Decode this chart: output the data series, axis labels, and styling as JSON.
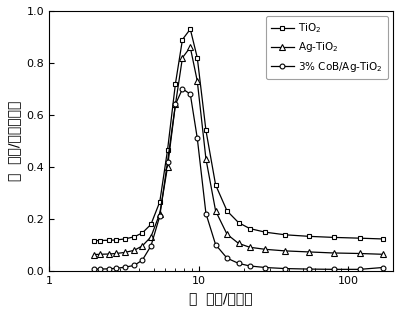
{
  "title": "",
  "xlabel": "孔  径（/纳米）",
  "ylabel": "孔  容（/毫升每克）",
  "xlim": [
    1,
    200
  ],
  "ylim": [
    0.0,
    1.0
  ],
  "yticks": [
    0.0,
    0.2,
    0.4,
    0.6,
    0.8,
    1.0
  ],
  "xticks": [
    1,
    10,
    100
  ],
  "series": [
    {
      "label": "TiO$_2$",
      "marker": "s",
      "markersize": 3.5,
      "color": "#000000",
      "x": [
        2.0,
        2.2,
        2.5,
        2.8,
        3.2,
        3.7,
        4.2,
        4.8,
        5.5,
        6.2,
        7.0,
        7.8,
        8.8,
        9.8,
        11.2,
        13.0,
        15.5,
        18.5,
        22.0,
        28.0,
        38.0,
        55.0,
        80.0,
        120.0,
        170.0
      ],
      "y": [
        0.115,
        0.116,
        0.117,
        0.118,
        0.122,
        0.13,
        0.145,
        0.178,
        0.265,
        0.465,
        0.72,
        0.89,
        0.93,
        0.82,
        0.54,
        0.33,
        0.23,
        0.185,
        0.162,
        0.148,
        0.138,
        0.132,
        0.128,
        0.125,
        0.122
      ]
    },
    {
      "label": "Ag-TiO$_2$",
      "marker": "^",
      "markersize": 4.5,
      "color": "#000000",
      "x": [
        2.0,
        2.2,
        2.5,
        2.8,
        3.2,
        3.7,
        4.2,
        4.8,
        5.5,
        6.2,
        7.0,
        7.8,
        8.8,
        9.8,
        11.2,
        13.0,
        15.5,
        18.5,
        22.0,
        28.0,
        38.0,
        55.0,
        80.0,
        120.0,
        170.0
      ],
      "y": [
        0.062,
        0.063,
        0.064,
        0.066,
        0.07,
        0.078,
        0.095,
        0.13,
        0.22,
        0.4,
        0.64,
        0.82,
        0.86,
        0.73,
        0.43,
        0.23,
        0.14,
        0.105,
        0.09,
        0.082,
        0.076,
        0.072,
        0.068,
        0.066,
        0.063
      ]
    },
    {
      "label": "3% CoB/Ag-TiO$_2$",
      "marker": "o",
      "markersize": 3.5,
      "color": "#000000",
      "x": [
        2.0,
        2.2,
        2.5,
        2.8,
        3.2,
        3.7,
        4.2,
        4.8,
        5.5,
        6.2,
        7.0,
        7.8,
        8.8,
        9.8,
        11.2,
        13.0,
        15.5,
        18.5,
        22.0,
        28.0,
        38.0,
        55.0,
        80.0,
        120.0,
        170.0
      ],
      "y": [
        0.005,
        0.006,
        0.007,
        0.009,
        0.013,
        0.02,
        0.04,
        0.095,
        0.21,
        0.42,
        0.64,
        0.7,
        0.68,
        0.51,
        0.22,
        0.1,
        0.048,
        0.028,
        0.018,
        0.012,
        0.008,
        0.006,
        0.005,
        0.005,
        0.012
      ]
    }
  ],
  "legend_loc": "upper right",
  "background_color": "#ffffff"
}
